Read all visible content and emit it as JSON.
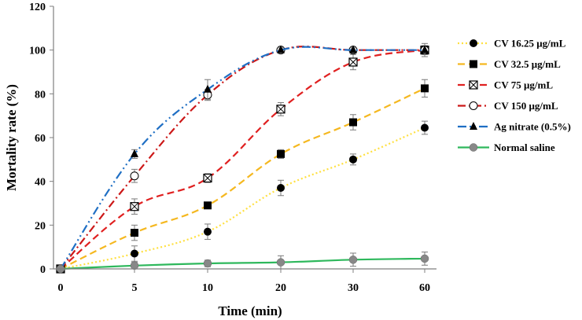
{
  "chart_data": {
    "type": "line",
    "xlabel": "Time (min)",
    "ylabel": "Mortality rate (%)",
    "categories": [
      "0",
      "5",
      "10",
      "20",
      "30",
      "60"
    ],
    "ylim": [
      0,
      120
    ],
    "yticks": [
      0,
      20,
      40,
      60,
      80,
      100,
      120
    ],
    "grid": false,
    "legend_position": "right",
    "series": [
      {
        "name": "CV 16.25 μg/mL",
        "values": [
          0,
          7,
          17,
          37,
          50,
          64.5
        ],
        "errors": [
          0,
          3.5,
          3.5,
          3.5,
          2.5,
          3
        ],
        "color": "#ffe040",
        "line_style": "dotted",
        "marker": "filled-circle"
      },
      {
        "name": "CV 32.5 μg/mL",
        "values": [
          0,
          16.5,
          29,
          52.5,
          67,
          82.5
        ],
        "errors": [
          0,
          3.5,
          1.5,
          2,
          3.5,
          4
        ],
        "color": "#f5b820",
        "line_style": "dashed",
        "marker": "filled-square"
      },
      {
        "name": "CV 75 μg/mL",
        "values": [
          0,
          28.5,
          41.5,
          73,
          94.5,
          100
        ],
        "errors": [
          0,
          3.5,
          2,
          3,
          3.5,
          2
        ],
        "color": "#e02020",
        "line_style": "dashed",
        "marker": "crossed-square"
      },
      {
        "name": "CV 150 μg/mL",
        "values": [
          0,
          42.5,
          79.5,
          100,
          100,
          100
        ],
        "errors": [
          0,
          3,
          2.5,
          1,
          1,
          1
        ],
        "color": "#cc1818",
        "line_style": "dash-dot",
        "marker": "open-circle"
      },
      {
        "name": "Ag nitrate (0.5%)",
        "values": [
          0,
          52.5,
          82,
          100,
          100,
          100
        ],
        "errors": [
          0,
          2,
          4.5,
          1,
          1,
          3
        ],
        "color": "#1f6fc4",
        "line_style": "dash-dot-dot",
        "marker": "filled-triangle"
      },
      {
        "name": "Normal saline",
        "values": [
          0,
          1.5,
          2.5,
          3,
          4.2,
          4.7
        ],
        "errors": [
          0,
          1.5,
          1.5,
          3,
          3,
          3
        ],
        "color": "#2eb85c",
        "line_style": "solid",
        "marker": "gray-circle"
      }
    ]
  }
}
